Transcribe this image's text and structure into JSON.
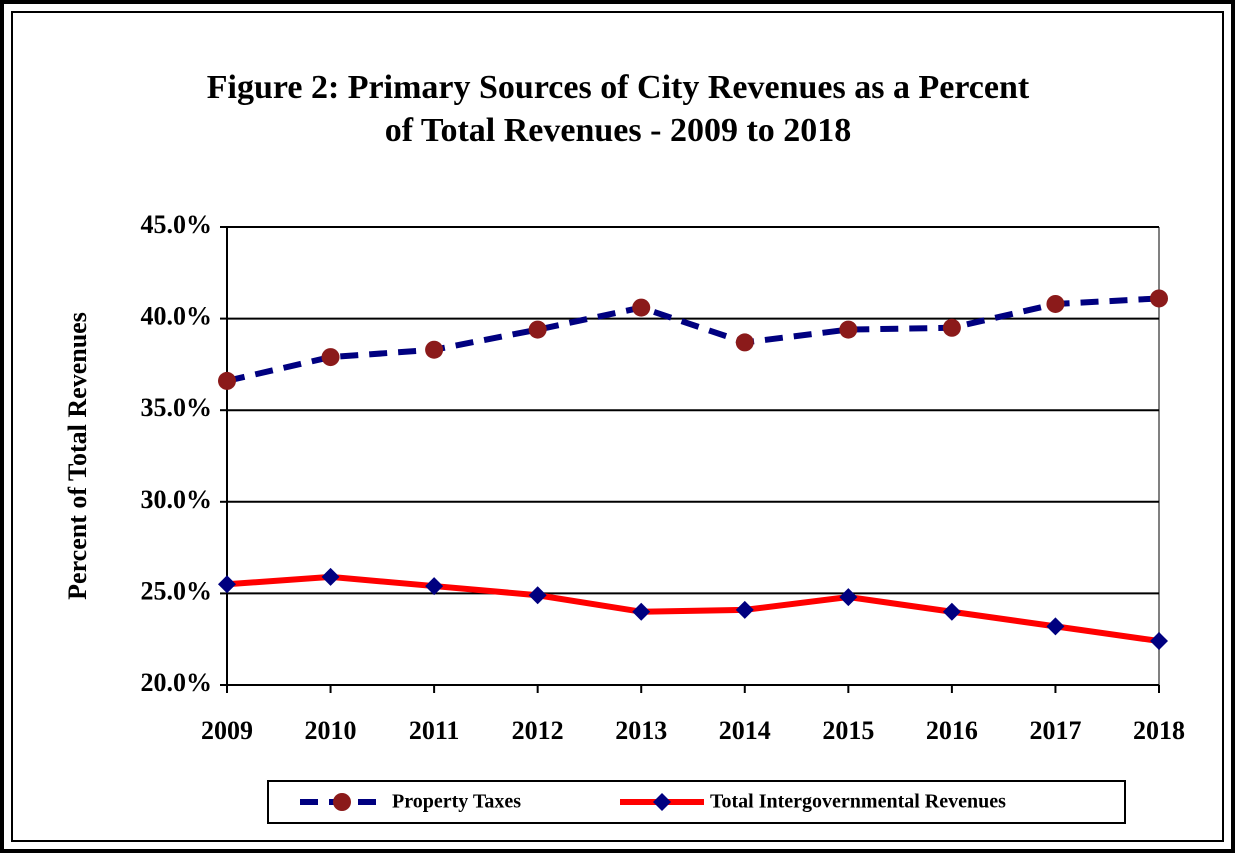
{
  "chart_data": {
    "type": "line",
    "title": [
      "Figure 2:  Primary Sources of City Revenues as a Percent",
      "of Total Revenues - 2009 to 2018"
    ],
    "y_label": "Percent of Total Revenues",
    "categories": [
      "2009",
      "2010",
      "2011",
      "2012",
      "2013",
      "2014",
      "2015",
      "2016",
      "2017",
      "2018"
    ],
    "series": [
      {
        "name": "Property Taxes",
        "color": "#000080",
        "line_style": "dashed",
        "marker": "circle",
        "marker_color": "#8b1a1a",
        "values": [
          36.6,
          37.9,
          38.3,
          39.4,
          40.6,
          38.7,
          39.4,
          39.5,
          40.8,
          41.1
        ]
      },
      {
        "name": "Total  Intergovernmental Revenues",
        "color": "#ff0000",
        "line_style": "solid",
        "marker": "diamond",
        "marker_color": "#000080",
        "values": [
          25.5,
          25.9,
          25.4,
          24.9,
          24.0,
          24.1,
          24.8,
          24.0,
          23.2,
          22.4
        ]
      }
    ],
    "ylim": [
      20,
      45
    ],
    "yticks": [
      {
        "value": 20,
        "label": "20.0%"
      },
      {
        "value": 25,
        "label": "25.0%"
      },
      {
        "value": 30,
        "label": "30.0%"
      },
      {
        "value": 35,
        "label": "35.0%"
      },
      {
        "value": 40,
        "label": "40.0%"
      },
      {
        "value": 45,
        "label": "45.0%"
      }
    ],
    "grid": true,
    "legend": "bottom"
  }
}
